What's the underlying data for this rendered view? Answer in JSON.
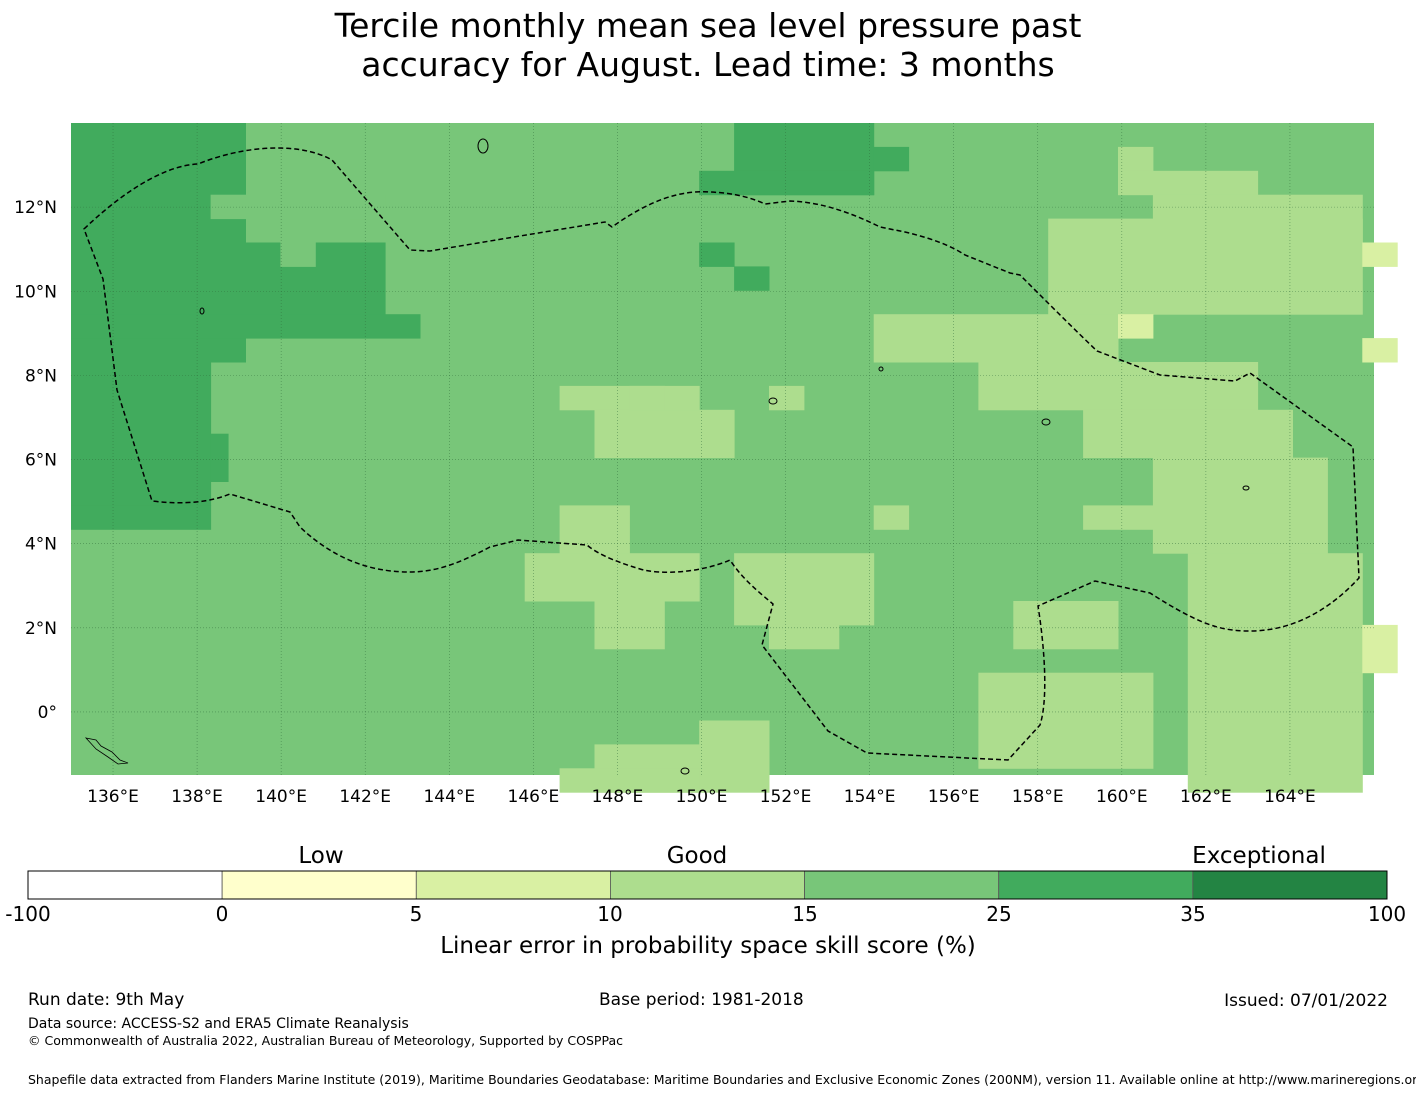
{
  "title": {
    "line1": "Tercile monthly mean sea level pressure past",
    "line2": "accuracy for August. Lead time: 3 months"
  },
  "map": {
    "lon_labels": [
      "136°E",
      "138°E",
      "140°E",
      "142°E",
      "144°E",
      "146°E",
      "148°E",
      "150°E",
      "152°E",
      "154°E",
      "156°E",
      "158°E",
      "160°E",
      "162°E",
      "164°E"
    ],
    "lat_labels": [
      "12°N",
      "10°N",
      "8°N",
      "6°N",
      "4°N",
      "2°N",
      "0°"
    ],
    "extent": {
      "lon_min": 135.0,
      "lon_max": 166.0,
      "lat_min": -1.5,
      "lat_max": 14.0
    },
    "grid_lines": true,
    "boundary_style": "dashed"
  },
  "colorbar": {
    "categories": [
      "Low",
      "Good",
      "Exceptional"
    ],
    "ticks": [
      "-100",
      "0",
      "5",
      "10",
      "15",
      "25",
      "35",
      "100"
    ],
    "colors": [
      "#ffffff",
      "#ffffcc",
      "#d9f0a3",
      "#addd8e",
      "#78c679",
      "#41ab5d",
      "#238443"
    ],
    "label": "Linear error in probability space skill score (%)"
  },
  "footer": {
    "run_date": "Run date: 9th May",
    "base_period": "Base period: 1981-2018",
    "issued": "Issued: 07/01/2022",
    "data_source": "Data source: ACCESS-S2 and ERA5 Climate Reanalysis",
    "copyright": "© Commonwealth of Australia 2022, Australian Bureau of Meteorology, Supported by COSPPac",
    "shapefile": "Shapefile data extracted from Flanders Marine Institute (2019), Maritime Boundaries Geodatabase: Maritime Boundaries and Exclusive Economic Zones (200NM), version 11. Available online at http://www.marineregions.org/."
  }
}
